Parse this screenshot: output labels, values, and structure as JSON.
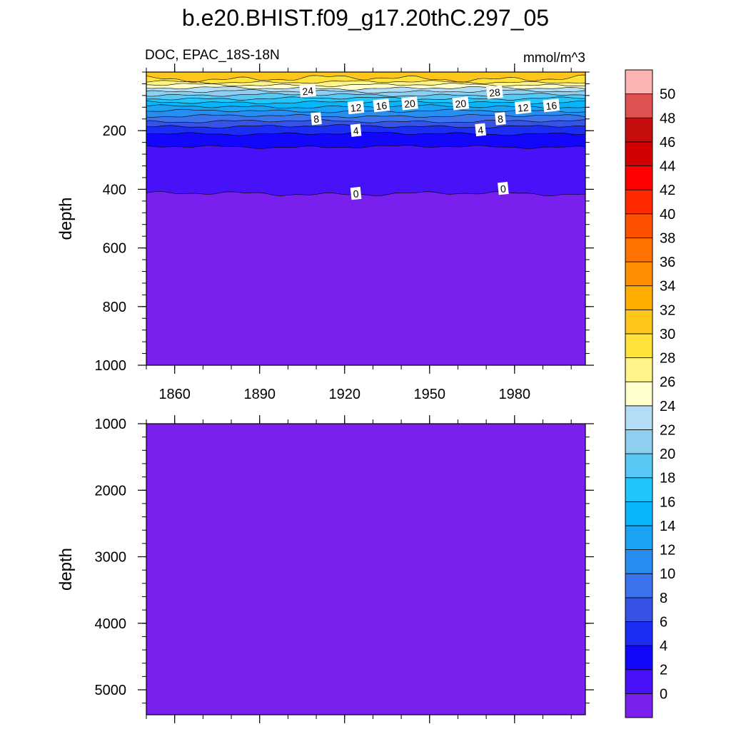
{
  "chart_data": {
    "type": "contour",
    "title": "b.e20.BHIST.f09_g17.20thC.297_05",
    "variable_label": "DOC, EPAC_18S-18N",
    "units_label": "mmol/m^3",
    "xlim": [
      1850,
      2005
    ],
    "x_ticks": [
      1860,
      1890,
      1920,
      1950,
      1980
    ],
    "x_tick_labels": [
      "1860",
      "1890",
      "1920",
      "1950",
      "1980"
    ],
    "panels": [
      {
        "name": "upper",
        "ylabel": "depth",
        "ylim": [
          0,
          1000
        ],
        "y_ticks": [
          200,
          400,
          600,
          800,
          1000
        ],
        "y_tick_labels": [
          "200",
          "400",
          "600",
          "800",
          "1000"
        ],
        "depth_levels": [
          {
            "value": 0,
            "depth": 415
          },
          {
            "value": 2,
            "depth": 255
          },
          {
            "value": 4,
            "depth": 210
          },
          {
            "value": 6,
            "depth": 185
          },
          {
            "value": 8,
            "depth": 168
          },
          {
            "value": 10,
            "depth": 150
          },
          {
            "value": 12,
            "depth": 133
          },
          {
            "value": 14,
            "depth": 118
          },
          {
            "value": 16,
            "depth": 103
          },
          {
            "value": 18,
            "depth": 90
          },
          {
            "value": 20,
            "depth": 78
          },
          {
            "value": 22,
            "depth": 66
          },
          {
            "value": 24,
            "depth": 55
          },
          {
            "value": 26,
            "depth": 44
          },
          {
            "value": 28,
            "depth": 34
          },
          {
            "value": 30,
            "depth": 22
          }
        ],
        "contour_labels": [
          {
            "text": "24",
            "year": 1907,
            "depth": 65
          },
          {
            "text": "8",
            "year": 1910,
            "depth": 160
          },
          {
            "text": "12",
            "year": 1924,
            "depth": 122
          },
          {
            "text": "16",
            "year": 1933,
            "depth": 115
          },
          {
            "text": "20",
            "year": 1943,
            "depth": 108
          },
          {
            "text": "4",
            "year": 1924,
            "depth": 200
          },
          {
            "text": "0",
            "year": 1924,
            "depth": 415
          },
          {
            "text": "20",
            "year": 1961,
            "depth": 108
          },
          {
            "text": "28",
            "year": 1973,
            "depth": 70
          },
          {
            "text": "8",
            "year": 1975,
            "depth": 160
          },
          {
            "text": "12",
            "year": 1983,
            "depth": 122
          },
          {
            "text": "16",
            "year": 1993,
            "depth": 115
          },
          {
            "text": "4",
            "year": 1968,
            "depth": 198
          },
          {
            "text": "0",
            "year": 1976,
            "depth": 398
          }
        ]
      },
      {
        "name": "lower",
        "ylabel": "depth",
        "ylim": [
          1000,
          5375
        ],
        "y_ticks": [
          1000,
          2000,
          3000,
          4000,
          5000
        ],
        "y_tick_labels": [
          "1000",
          "2000",
          "3000",
          "4000",
          "5000"
        ],
        "fill_value_range": "below 0"
      }
    ],
    "colorbar": {
      "levels": [
        0,
        2,
        4,
        6,
        8,
        10,
        12,
        14,
        16,
        18,
        20,
        22,
        24,
        26,
        28,
        30,
        32,
        34,
        36,
        38,
        40,
        42,
        44,
        46,
        48,
        50
      ],
      "labels": [
        "0",
        "2",
        "4",
        "6",
        "8",
        "10",
        "12",
        "14",
        "16",
        "18",
        "20",
        "22",
        "24",
        "26",
        "28",
        "30",
        "32",
        "34",
        "36",
        "38",
        "40",
        "42",
        "44",
        "46",
        "48",
        "50"
      ],
      "colors": [
        "#7a20ee",
        "#4712f7",
        "#1206fb",
        "#1b2cf3",
        "#3653e6",
        "#3b73ec",
        "#268ef0",
        "#1aa2f5",
        "#06b6fb",
        "#1ec6fc",
        "#58c8f4",
        "#8ecff0",
        "#b3ddf5",
        "#ffffcc",
        "#fff38a",
        "#ffe33b",
        "#ffc61b",
        "#ffae00",
        "#ff8e00",
        "#ff7300",
        "#ff5000",
        "#ff2a00",
        "#ff0000",
        "#d20000",
        "#c70e0e",
        "#e05252",
        "#fdb3b3"
      ]
    }
  }
}
